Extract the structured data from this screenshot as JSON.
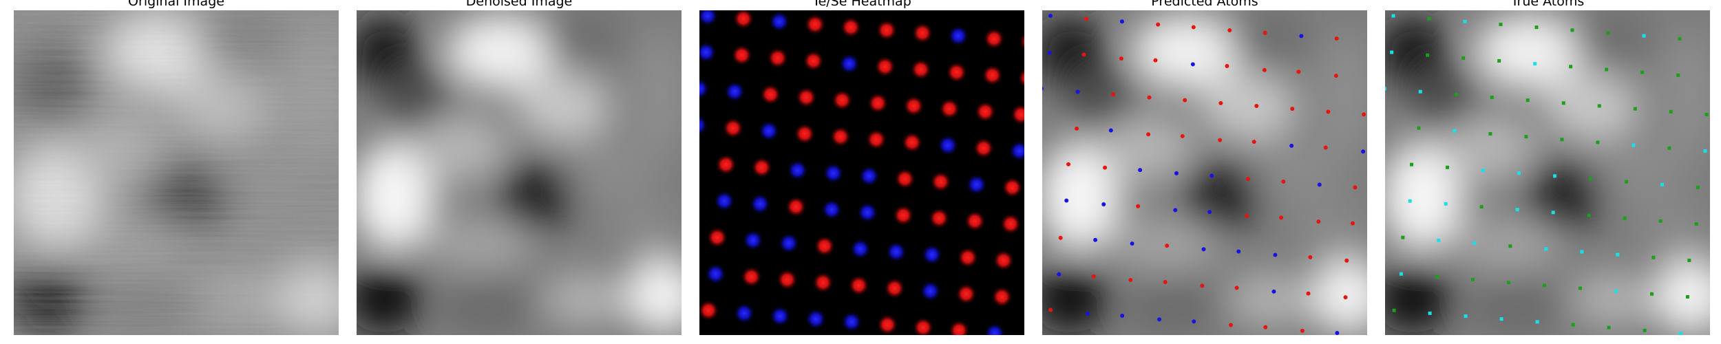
{
  "panels": [
    {
      "title": "Original Image",
      "kind": "grayscale-micrograph"
    },
    {
      "title": "Denoised Image",
      "kind": "grayscale-micrograph-denoised"
    },
    {
      "title": "Te/Se Heatmap",
      "kind": "heatmap",
      "legend": {
        "red": "Te",
        "blue": "Se"
      }
    },
    {
      "title": "Predicted Atoms",
      "kind": "overlay",
      "marker_colors": {
        "te": "#e8140f",
        "se": "#1414e6"
      }
    },
    {
      "title": "True Atoms",
      "kind": "overlay",
      "marker_colors": {
        "te": "#1aa01a",
        "se": "#18e0e8"
      }
    }
  ],
  "colors": {
    "background": "#ffffff",
    "heat_red": "#ff1010",
    "heat_blue": "#1a1aff"
  }
}
